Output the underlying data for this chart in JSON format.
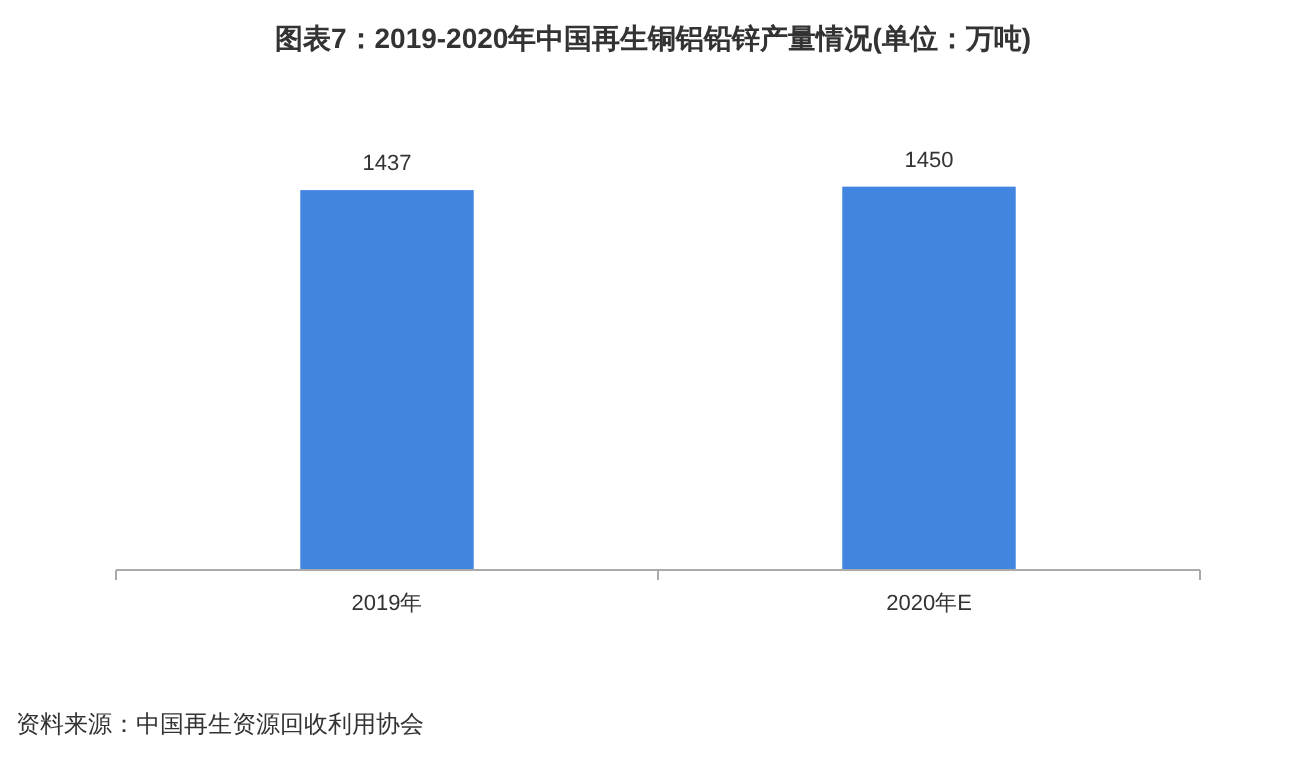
{
  "chart_data": {
    "type": "bar",
    "title": "图表7：2019-2020年中国再生铜铝铅锌产量情况(单位：万吨)",
    "categories": [
      "2019年",
      "2020年E"
    ],
    "values": [
      1437,
      1450
    ],
    "color": "#4285e0",
    "data_labels": true,
    "annotations": [
      "资料来源：中国再生资源回收利用协会"
    ]
  }
}
